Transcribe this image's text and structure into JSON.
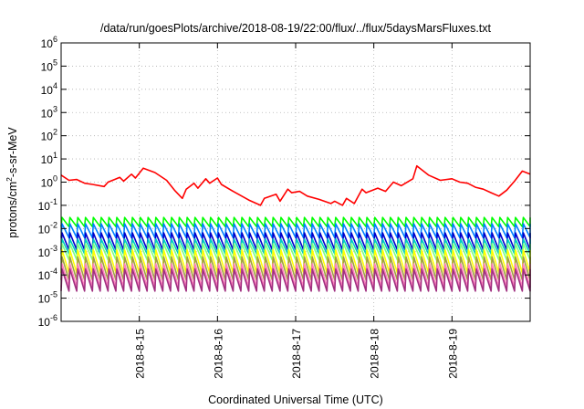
{
  "chart_data": {
    "type": "line",
    "title": "/data/run/goesPlots/archive/2018-08-19/22:00/flux/../flux/5daysMarsFluxes.txt",
    "xlabel": "Coordinated Universal Time (UTC)",
    "ylabel": {
      "base": "protons/cm",
      "sup": "2",
      "rest": "-s-sr-MeV"
    },
    "xlim_days": [
      14.0,
      20.0
    ],
    "ylim_log10": [
      -6,
      6
    ],
    "log_y": true,
    "grid": true,
    "x_ticks": [
      {
        "day": 15,
        "label": "2018-8-15"
      },
      {
        "day": 16,
        "label": "2018-8-16"
      },
      {
        "day": 17,
        "label": "2018-8-17"
      },
      {
        "day": 18,
        "label": "2018-8-18"
      },
      {
        "day": 19,
        "label": "2018-8-19"
      }
    ],
    "y_ticks": [
      {
        "exp": 6,
        "label": "10",
        "sup": "6"
      },
      {
        "exp": 5,
        "label": "10",
        "sup": "5"
      },
      {
        "exp": 4,
        "label": "10",
        "sup": "4"
      },
      {
        "exp": 3,
        "label": "10",
        "sup": "3"
      },
      {
        "exp": 2,
        "label": "10",
        "sup": "2"
      },
      {
        "exp": 1,
        "label": "10",
        "sup": "1"
      },
      {
        "exp": 0,
        "label": "10",
        "sup": "0"
      },
      {
        "exp": -1,
        "label": "10",
        "sup": "-1"
      },
      {
        "exp": -2,
        "label": "10",
        "sup": "-2"
      },
      {
        "exp": -3,
        "label": "10",
        "sup": "-3"
      },
      {
        "exp": -4,
        "label": "10",
        "sup": "-4"
      },
      {
        "exp": -5,
        "label": "10",
        "sup": "-5"
      },
      {
        "exp": -6,
        "label": "10",
        "sup": "-6"
      }
    ],
    "series": [
      {
        "color": "#ff0000",
        "x": [
          14.0,
          14.1,
          14.2,
          14.3,
          14.4,
          14.55,
          14.6,
          14.75,
          14.8,
          14.9,
          14.95,
          15.05,
          15.2,
          15.35,
          15.45,
          15.55,
          15.6,
          15.7,
          15.75,
          15.85,
          15.9,
          16.0,
          16.05,
          16.2,
          16.4,
          16.55,
          16.6,
          16.75,
          16.8,
          16.9,
          16.95,
          17.05,
          17.15,
          17.3,
          17.45,
          17.5,
          17.6,
          17.65,
          17.75,
          17.85,
          17.9,
          18.05,
          18.15,
          18.25,
          18.35,
          18.5,
          18.55,
          18.7,
          18.85,
          19.0,
          19.1,
          19.2,
          19.3,
          19.4,
          19.5,
          19.6,
          19.7,
          19.8,
          19.9,
          20.0
        ],
        "y": [
          2.0,
          1.2,
          1.3,
          0.9,
          0.8,
          0.65,
          1.0,
          1.6,
          1.1,
          2.2,
          1.5,
          4.0,
          2.6,
          1.2,
          0.45,
          0.2,
          0.5,
          0.9,
          0.55,
          1.4,
          0.9,
          1.5,
          0.8,
          0.4,
          0.17,
          0.1,
          0.2,
          0.3,
          0.15,
          0.5,
          0.35,
          0.4,
          0.25,
          0.18,
          0.12,
          0.15,
          0.1,
          0.2,
          0.12,
          0.5,
          0.35,
          0.55,
          0.4,
          1.0,
          0.7,
          1.4,
          5.0,
          2.0,
          1.2,
          1.4,
          1.0,
          0.9,
          0.6,
          0.5,
          0.35,
          0.25,
          0.45,
          1.1,
          3.0,
          2.2
        ]
      },
      {
        "color": "#00ff00",
        "period": 0.1,
        "high": 0.03,
        "low": 0.012
      },
      {
        "color": "#0080ff",
        "period": 0.1,
        "high": 0.016,
        "low": 0.004
      },
      {
        "color": "#0000cc",
        "period": 0.1,
        "high": 0.0065,
        "low": 0.0012
      },
      {
        "color": "#00d0c0",
        "period": 0.1,
        "high": 0.0035,
        "low": 0.0008
      },
      {
        "color": "#80ff80",
        "period": 0.1,
        "high": 0.0022,
        "low": 0.00045
      },
      {
        "color": "#ffff00",
        "period": 0.1,
        "high": 0.0012,
        "low": 0.00012
      },
      {
        "color": "#a0a040",
        "period": 0.1,
        "high": 0.0006,
        "low": 6e-05
      },
      {
        "color": "#ff80c0",
        "period": 0.1,
        "high": 0.0003,
        "low": 3e-05
      },
      {
        "color": "#a03080",
        "period": 0.1,
        "high": 0.00018,
        "low": 2e-05
      }
    ]
  }
}
